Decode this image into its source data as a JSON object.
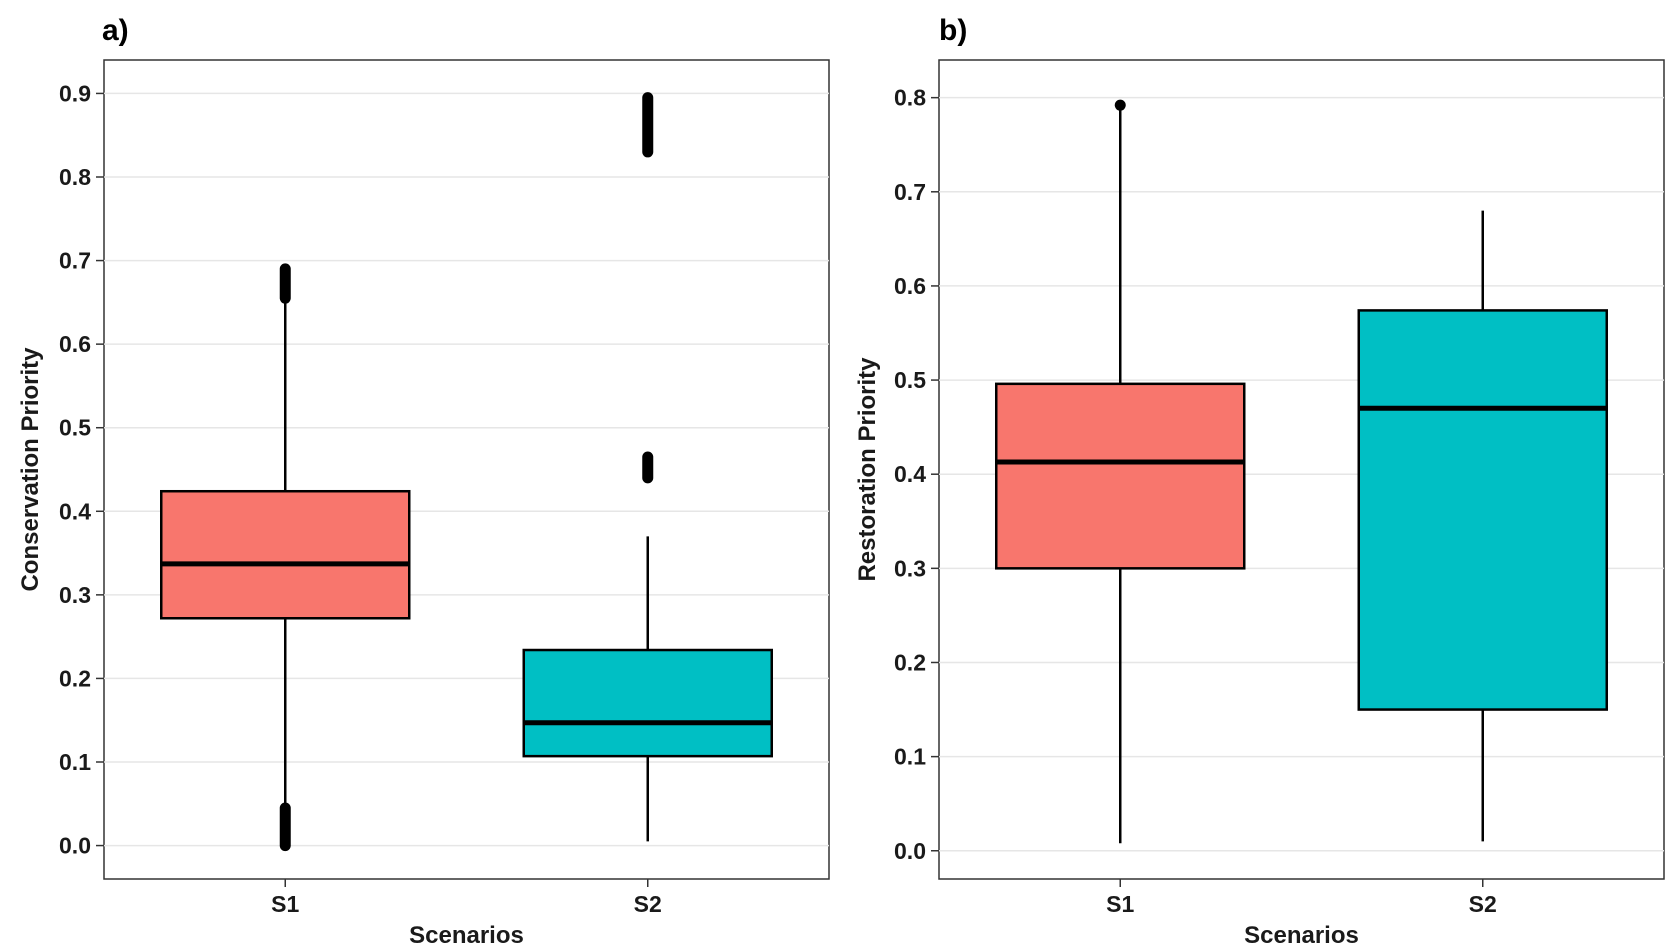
{
  "chart_data": [
    {
      "type": "box",
      "panel_label": "a)",
      "xlabel": "Scenarios",
      "ylabel": "Conservation Priority",
      "ylim": [
        -0.04,
        0.94
      ],
      "yticks": [
        "0.0",
        "0.1",
        "0.2",
        "0.3",
        "0.4",
        "0.5",
        "0.6",
        "0.7",
        "0.8",
        "0.9"
      ],
      "grid": true,
      "categories": [
        "S1",
        "S2"
      ],
      "boxes": [
        {
          "category": "S1",
          "color": "#F8766D",
          "lower_whisker": 0.045,
          "q1": 0.272,
          "median": 0.337,
          "q3": 0.424,
          "upper_whisker": 0.652,
          "outlier_ranges": [
            [
              0.0,
              0.045
            ],
            [
              0.655,
              0.69
            ]
          ]
        },
        {
          "category": "S2",
          "color": "#00BFC4",
          "lower_whisker": 0.005,
          "q1": 0.107,
          "median": 0.147,
          "q3": 0.234,
          "upper_whisker": 0.37,
          "outlier_ranges": [
            [
              0.44,
              0.465
            ],
            [
              0.83,
              0.895
            ]
          ]
        }
      ]
    },
    {
      "type": "box",
      "panel_label": "b)",
      "xlabel": "Scenarios",
      "ylabel": "Restoration Priority",
      "ylim": [
        -0.03,
        0.84
      ],
      "yticks": [
        "0.0",
        "0.1",
        "0.2",
        "0.3",
        "0.4",
        "0.5",
        "0.6",
        "0.7",
        "0.8"
      ],
      "grid": true,
      "categories": [
        "S1",
        "S2"
      ],
      "boxes": [
        {
          "category": "S1",
          "color": "#F8766D",
          "lower_whisker": 0.008,
          "q1": 0.3,
          "median": 0.413,
          "q3": 0.496,
          "upper_whisker": 0.79,
          "outlier_ranges": [
            [
              0.792,
              0.792
            ]
          ]
        },
        {
          "category": "S2",
          "color": "#00BFC4",
          "lower_whisker": 0.01,
          "q1": 0.15,
          "median": 0.47,
          "q3": 0.574,
          "upper_whisker": 0.68,
          "outlier_ranges": []
        }
      ]
    }
  ]
}
